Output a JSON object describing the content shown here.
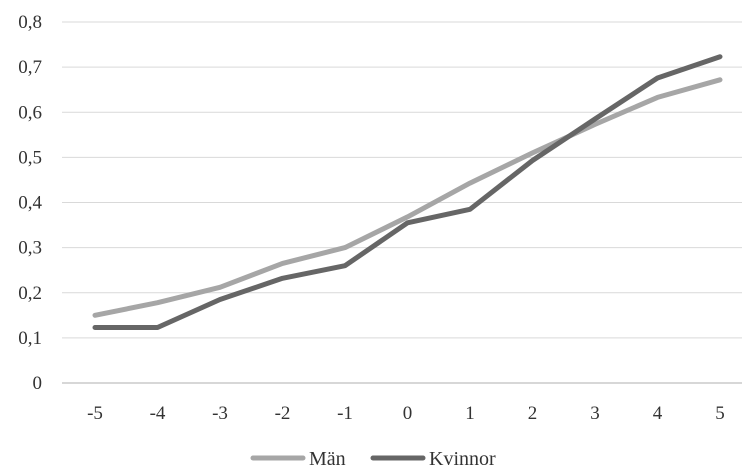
{
  "chart_data": {
    "type": "line",
    "x": [
      -5,
      -4,
      -3,
      -2,
      -1,
      0,
      1,
      2,
      3,
      4,
      5
    ],
    "x_tick_labels": [
      "-5",
      "-4",
      "-3",
      "-2",
      "-1",
      "0",
      "1",
      "2",
      "3",
      "4",
      "5"
    ],
    "y_tick_labels": [
      "0",
      "0,1",
      "0,2",
      "0,3",
      "0,4",
      "0,5",
      "0,6",
      "0,7",
      "0,8"
    ],
    "y_ticks": [
      0,
      0.1,
      0.2,
      0.3,
      0.4,
      0.5,
      0.6,
      0.7,
      0.8
    ],
    "ylim": [
      0,
      0.8
    ],
    "grid": "horizontal",
    "legend_position": "bottom",
    "title": "",
    "xlabel": "",
    "ylabel": "",
    "series": [
      {
        "name": "Män",
        "color": "#a6a6a6",
        "values": [
          0.15,
          0.178,
          0.212,
          0.265,
          0.3,
          0.368,
          0.443,
          0.51,
          0.573,
          0.633,
          0.672
        ]
      },
      {
        "name": "Kvinnor",
        "color": "#666666",
        "values": [
          0.123,
          0.123,
          0.185,
          0.232,
          0.26,
          0.355,
          0.385,
          0.493,
          0.585,
          0.676,
          0.723
        ]
      }
    ]
  }
}
